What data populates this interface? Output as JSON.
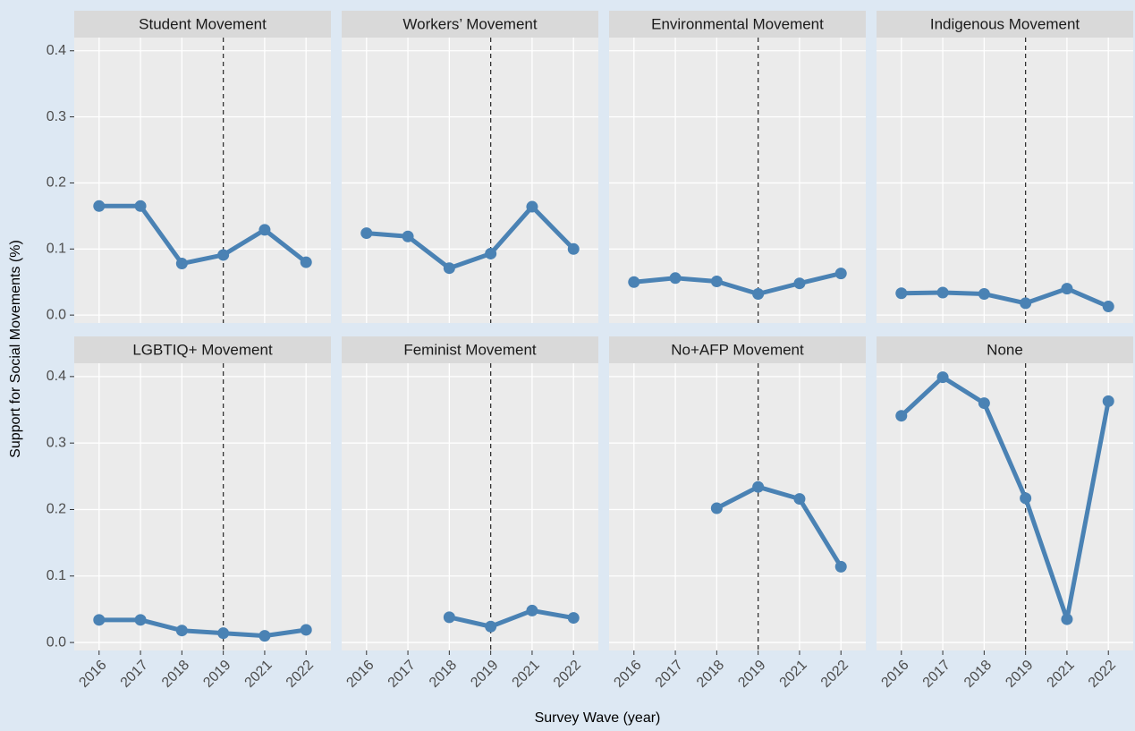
{
  "chart_data": {
    "type": "line",
    "xlabel": "Survey Wave (year)",
    "ylabel": "Support for Social Movements (%)",
    "categories": [
      "2016",
      "2017",
      "2018",
      "2019",
      "2021",
      "2022"
    ],
    "ylim": [
      -0.012,
      0.42
    ],
    "yticks": [
      {
        "value": 0,
        "label": "0.0"
      },
      0.1,
      0.2,
      0.3,
      0.4
    ],
    "grid": true,
    "vline": "2019",
    "color": "#4a82b4",
    "panels": [
      {
        "title": "Student Movement",
        "values": [
          0.165,
          0.165,
          0.078,
          0.091,
          0.129,
          0.08
        ]
      },
      {
        "title": "Workers’ Movement",
        "values": [
          0.124,
          0.119,
          0.071,
          0.093,
          0.164,
          0.1
        ]
      },
      {
        "title": "Environmental Movement",
        "values": [
          0.05,
          0.056,
          0.051,
          0.032,
          0.048,
          0.063
        ]
      },
      {
        "title": "Indigenous Movement",
        "values": [
          0.033,
          0.034,
          0.032,
          0.018,
          0.04,
          0.013
        ]
      },
      {
        "title": "LGBTIQ+ Movement",
        "values": [
          0.034,
          0.034,
          0.018,
          0.014,
          0.01,
          0.019
        ]
      },
      {
        "title": "Feminist Movement",
        "values": [
          null,
          null,
          0.038,
          0.024,
          0.048,
          0.037
        ]
      },
      {
        "title": "No+AFP Movement",
        "values": [
          null,
          null,
          0.202,
          0.234,
          0.216,
          0.114
        ]
      },
      {
        "title": "None",
        "values": [
          0.341,
          0.399,
          0.36,
          0.217,
          0.035,
          0.363
        ]
      }
    ]
  }
}
